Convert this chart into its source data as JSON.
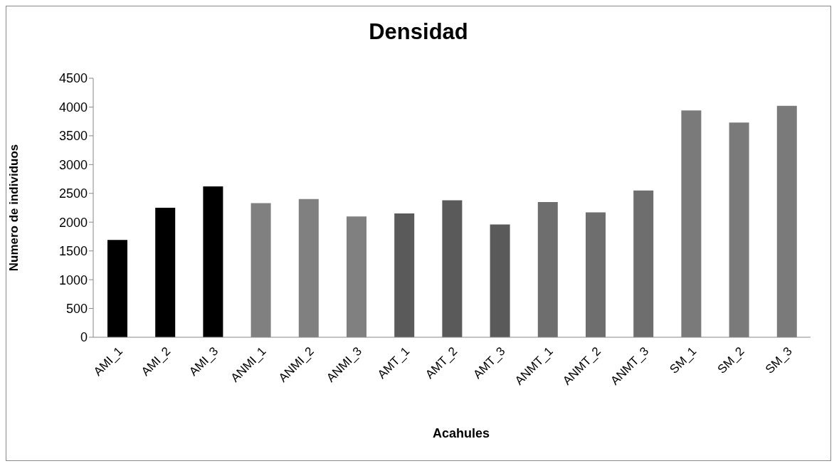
{
  "chart_data": {
    "type": "bar",
    "title": "Densidad",
    "xlabel": "Acahules",
    "ylabel": "Numero de individuos",
    "categories": [
      "AMI_1",
      "AMI_2",
      "AMI_3",
      "ANMI_1",
      "ANMI_2",
      "ANMI_3",
      "AMT_1",
      "AMT_2",
      "AMT_3",
      "ANMT_1",
      "ANMT_2",
      "ANMT_3",
      "SM_1",
      "SM_2",
      "SM_3"
    ],
    "values": [
      1690,
      2250,
      2620,
      2330,
      2400,
      2100,
      2150,
      2380,
      1960,
      2350,
      2170,
      2550,
      3940,
      3730,
      4020
    ],
    "colors": [
      "#000000",
      "#000000",
      "#000000",
      "#808080",
      "#808080",
      "#808080",
      "#5a5a5a",
      "#5a5a5a",
      "#5a5a5a",
      "#6e6e6e",
      "#6e6e6e",
      "#6e6e6e",
      "#7a7a7a",
      "#7a7a7a",
      "#7a7a7a"
    ],
    "ylim": [
      0,
      4500
    ],
    "yticks": [
      0,
      500,
      1000,
      1500,
      2000,
      2500,
      3000,
      3500,
      4000,
      4500
    ],
    "grid": false,
    "legend": false
  }
}
